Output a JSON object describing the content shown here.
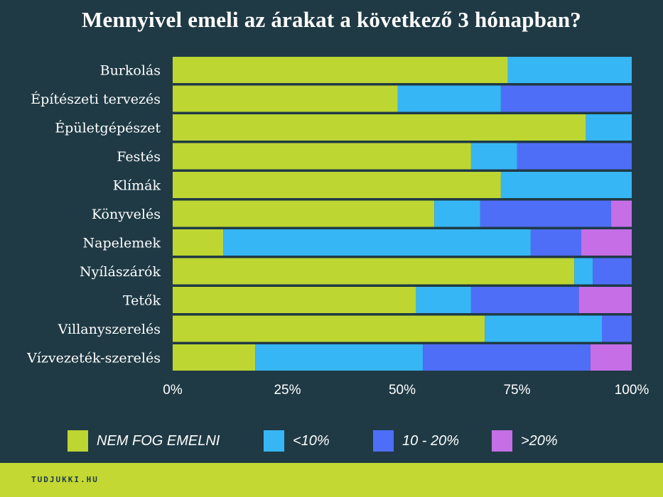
{
  "title": "Mennyivel emeli az árakat a következő 3 hónapban?",
  "footer": {
    "brand": "TUDJUKKI.HU"
  },
  "colors": {
    "background": "#1f3a45",
    "footer": "#c3d833",
    "series": [
      "#bdd632",
      "#37b6f6",
      "#4f6ef7",
      "#c56ee6"
    ]
  },
  "chart_data": {
    "type": "bar",
    "orientation": "horizontal",
    "stacked": true,
    "percent": true,
    "title": "Mennyivel emeli az árakat a következő 3 hónapban?",
    "xlim": [
      0,
      100
    ],
    "xticks": [
      "0%",
      "25%",
      "50%",
      "75%",
      "100%"
    ],
    "legend_position": "bottom",
    "categories": [
      "Burkolás",
      "Építészeti tervezés",
      "Épületgépészet",
      "Festés",
      "Klímák",
      "Könyvelés",
      "Napelemek",
      "Nyílászárók",
      "Tetők",
      "Villanyszerelés",
      "Vízvezeték-szerelés"
    ],
    "series": [
      {
        "name": "NEM FOG EMELNI",
        "values": [
          73,
          49,
          90,
          65,
          71.5,
          57,
          11,
          87.5,
          53,
          68,
          18
        ]
      },
      {
        "name": "<10%",
        "values": [
          27,
          22.5,
          10,
          10,
          28.5,
          10,
          67,
          4,
          12,
          25.5,
          36.5
        ]
      },
      {
        "name": "10 - 20%",
        "values": [
          0,
          28.5,
          0,
          25,
          0,
          28.5,
          11,
          8.5,
          23.5,
          6.5,
          36.5
        ]
      },
      {
        "name": ">20%",
        "values": [
          0,
          0,
          0,
          0,
          0,
          4.5,
          11,
          0,
          11.5,
          0,
          9
        ]
      }
    ]
  }
}
